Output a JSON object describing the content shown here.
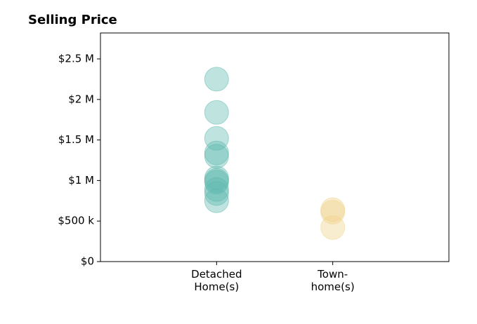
{
  "chart_data": {
    "type": "strip",
    "title": "Selling Price",
    "categories": [
      "Detached\nHome(s)",
      "Town-\nhome(s)"
    ],
    "values": [
      [
        2250000,
        1840000,
        1520000,
        1340000,
        1300000,
        1030000,
        1000000,
        980000,
        890000,
        840000,
        750000
      ],
      [
        640000,
        610000,
        420000
      ]
    ],
    "colors": [
      "#5fb8ae",
      "#f0d38a"
    ],
    "xlim": [
      -1,
      2
    ],
    "ylim": [
      0,
      2820000
    ],
    "yticks": [
      {
        "value": 0,
        "label": "$0"
      },
      {
        "value": 500000,
        "label": "$500 k"
      },
      {
        "value": 1000000,
        "label": "$1 M"
      },
      {
        "value": 1500000,
        "label": "$1.5 M"
      },
      {
        "value": 2000000,
        "label": "$2 M"
      },
      {
        "value": 2500000,
        "label": "$2.5 M"
      }
    ]
  }
}
